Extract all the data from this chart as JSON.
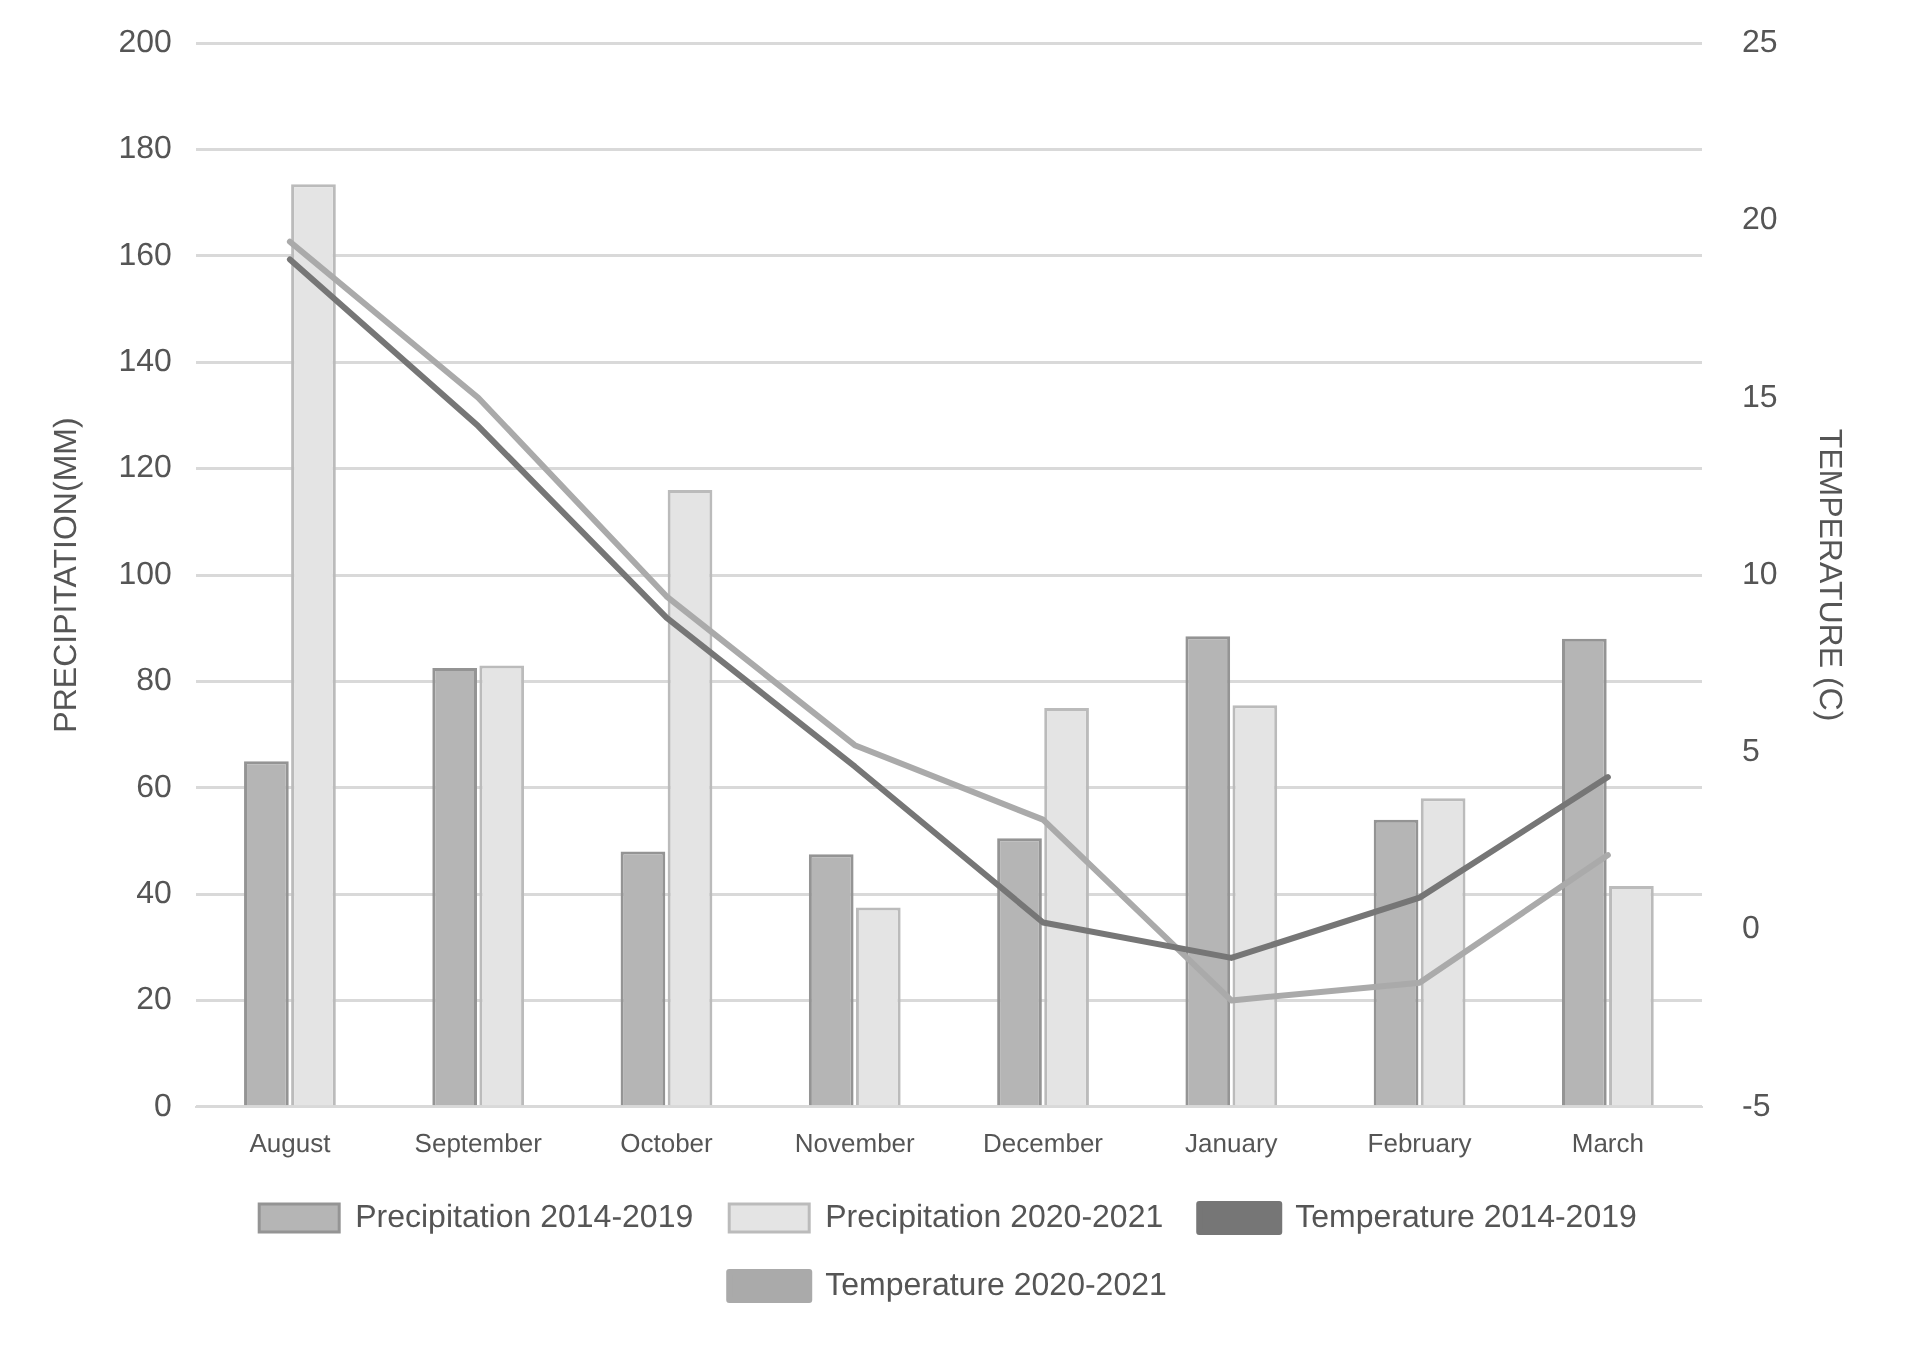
{
  "chart_data": {
    "type": "bar",
    "categories": [
      "August",
      "September",
      "October",
      "November",
      "December",
      "January",
      "February",
      "March"
    ],
    "ylabel": "PRECIPITATION(MM)",
    "y2label": "TEMPERATURE (C)",
    "ylim": [
      0,
      200
    ],
    "yticks": [
      0,
      20,
      40,
      60,
      80,
      100,
      120,
      140,
      160,
      180,
      200
    ],
    "y2lim": [
      -5,
      25
    ],
    "y2ticks": [
      -5,
      0,
      5,
      10,
      15,
      20,
      25
    ],
    "grid": "y",
    "legend": "bottom",
    "series": [
      {
        "name": "Precipitation 2014-2019",
        "color": "#b5b5b5",
        "values": [
          65,
          82.5,
          48,
          47.5,
          50.5,
          88.5,
          54,
          88
        ]
      },
      {
        "name": "Precipitation 2020-2021",
        "color": "#e4e4e4",
        "values": [
          173.5,
          83,
          116,
          37.5,
          75,
          75.5,
          58,
          41.5
        ]
      },
      {
        "name": "Temperature 2014-2019",
        "type": "line",
        "axis": "y2",
        "color": "#767676",
        "values": [
          18.9,
          14.2,
          8.8,
          4.6,
          0.2,
          -0.8,
          0.9,
          4.3
        ]
      },
      {
        "name": "Temperature 2020-2021",
        "type": "line",
        "axis": "y2",
        "color": "#aaaaaa",
        "values": [
          19.4,
          15.0,
          9.4,
          5.2,
          3.1,
          -2.0,
          -1.5,
          2.1
        ]
      }
    ]
  }
}
